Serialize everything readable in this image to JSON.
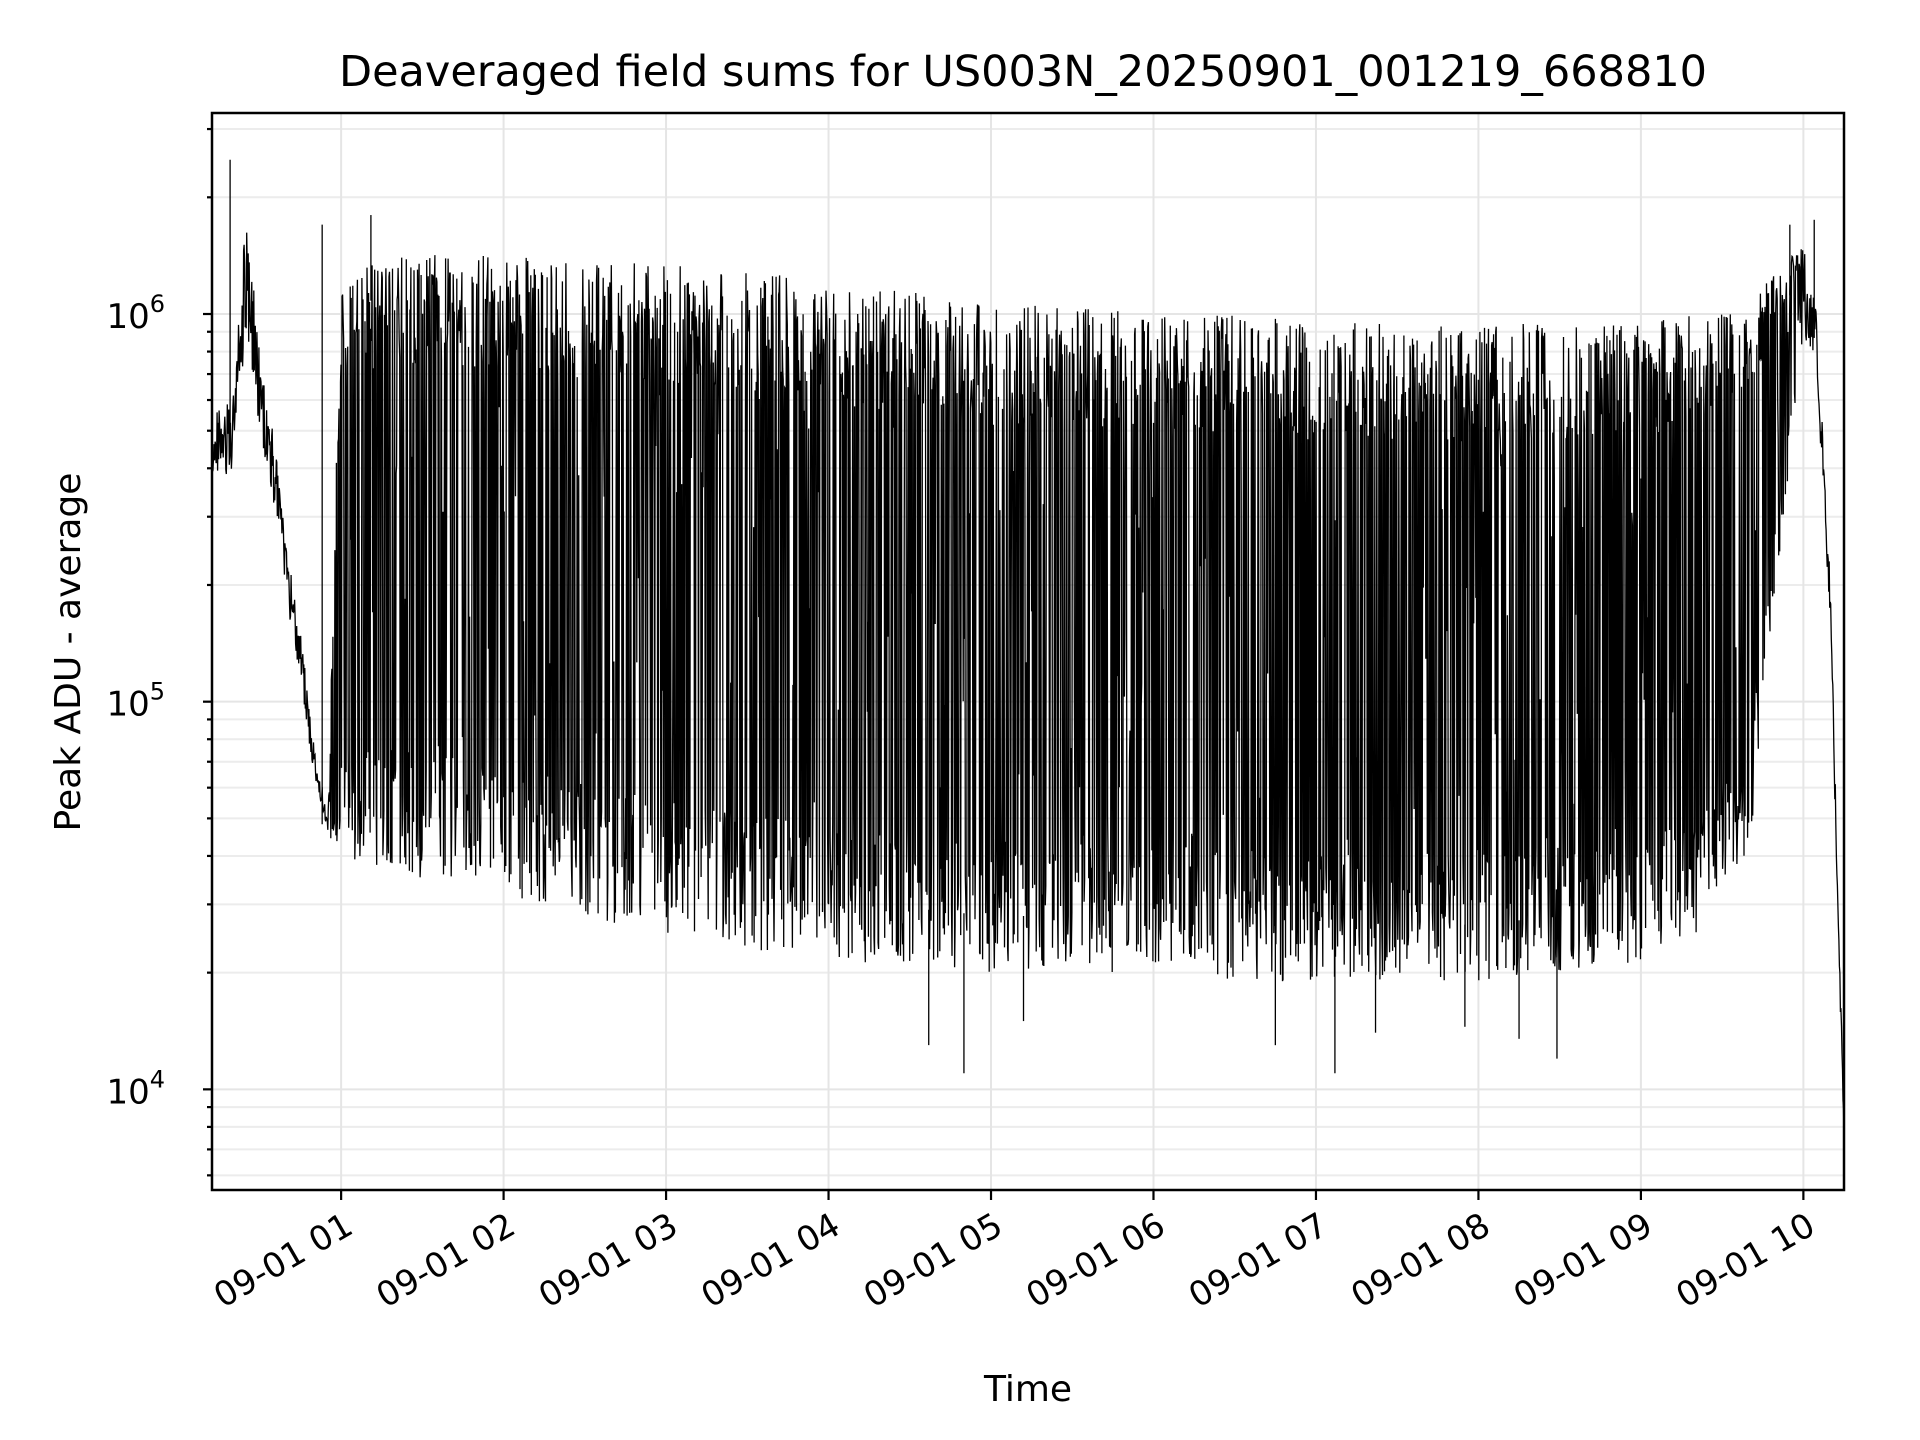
{
  "chart_data": {
    "type": "line",
    "title": "Deaveraged field sums for US003N_20250901_001219_668810",
    "xlabel": "Time",
    "ylabel": "Peak ADU - average",
    "yscale": "log",
    "ylim": [
      5500,
      3300000
    ],
    "xlim": [
      "2025-09-01 00:12:19",
      "2025-09-01 10:15:00"
    ],
    "grid": true,
    "x_tick_labels": [
      "09-01 01",
      "09-01 02",
      "09-01 03",
      "09-01 04",
      "09-01 05",
      "09-01 06",
      "09-01 07",
      "09-01 08",
      "09-01 09",
      "09-01 10"
    ],
    "y_ticks": [
      {
        "base": "10",
        "exp": "4",
        "value": 10000
      },
      {
        "base": "10",
        "exp": "5",
        "value": 100000
      },
      {
        "base": "10",
        "exp": "6",
        "value": 1000000
      }
    ],
    "series": [
      {
        "color": "#000000",
        "x": [
          "2025-09-01 00:12:19",
          "2025-09-01 00:20:00",
          "2025-09-01 00:25:00",
          "2025-09-01 00:30:00",
          "2025-09-01 00:35:00",
          "2025-09-01 00:40:00",
          "2025-09-01 00:45:00",
          "2025-09-01 00:50:00",
          "2025-09-01 00:55:00",
          "2025-09-01 01:00:00",
          "2025-09-01 01:30:00",
          "2025-09-01 02:00:00",
          "2025-09-01 02:30:00",
          "2025-09-01 03:00:00",
          "2025-09-01 03:30:00",
          "2025-09-01 04:00:00",
          "2025-09-01 04:30:00",
          "2025-09-01 05:00:00",
          "2025-09-01 05:30:00",
          "2025-09-01 06:00:00",
          "2025-09-01 06:30:00",
          "2025-09-01 07:00:00",
          "2025-09-01 07:30:00",
          "2025-09-01 08:00:00",
          "2025-09-01 08:30:00",
          "2025-09-01 09:00:00",
          "2025-09-01 09:20:00",
          "2025-09-01 09:40:00",
          "2025-09-01 09:50:00",
          "2025-09-01 10:00:00",
          "2025-09-01 10:05:00",
          "2025-09-01 10:10:00",
          "2025-09-01 10:15:00"
        ],
        "upper": [
          550000,
          600000,
          2000000,
          800000,
          500000,
          250000,
          150000,
          80000,
          50000,
          1300000,
          1450000,
          1400000,
          1400000,
          1350000,
          1300000,
          1200000,
          1150000,
          1050000,
          1050000,
          1000000,
          1000000,
          950000,
          950000,
          950000,
          950000,
          950000,
          1000000,
          1100000,
          1300000,
          1500000,
          1000000,
          200000,
          8000
        ],
        "lower": [
          350000,
          400000,
          900000,
          500000,
          320000,
          180000,
          110000,
          65000,
          45000,
          40000,
          35000,
          32000,
          28000,
          25000,
          23000,
          21000,
          21000,
          20000,
          20000,
          20000,
          19000,
          19000,
          19000,
          19000,
          20000,
          21000,
          25000,
          40000,
          200000,
          900000,
          700000,
          150000,
          7000
        ],
        "min_spikes": [
          {
            "x": "2025-09-01 04:37:00",
            "y": 13000
          },
          {
            "x": "2025-09-01 04:50:00",
            "y": 11000
          },
          {
            "x": "2025-09-01 05:12:00",
            "y": 15000
          },
          {
            "x": "2025-09-01 06:45:00",
            "y": 13000
          },
          {
            "x": "2025-09-01 07:07:00",
            "y": 11000
          },
          {
            "x": "2025-09-01 07:22:00",
            "y": 14000
          },
          {
            "x": "2025-09-01 07:55:00",
            "y": 14500
          },
          {
            "x": "2025-09-01 08:15:00",
            "y": 13500
          },
          {
            "x": "2025-09-01 08:29:00",
            "y": 12000
          }
        ],
        "max_spikes": [
          {
            "x": "2025-09-01 00:19:00",
            "y": 2500000
          },
          {
            "x": "2025-09-01 00:53:00",
            "y": 1700000
          },
          {
            "x": "2025-09-01 01:11:00",
            "y": 1800000
          },
          {
            "x": "2025-09-01 09:55:00",
            "y": 1700000
          },
          {
            "x": "2025-09-01 10:04:00",
            "y": 1750000
          }
        ]
      }
    ]
  }
}
